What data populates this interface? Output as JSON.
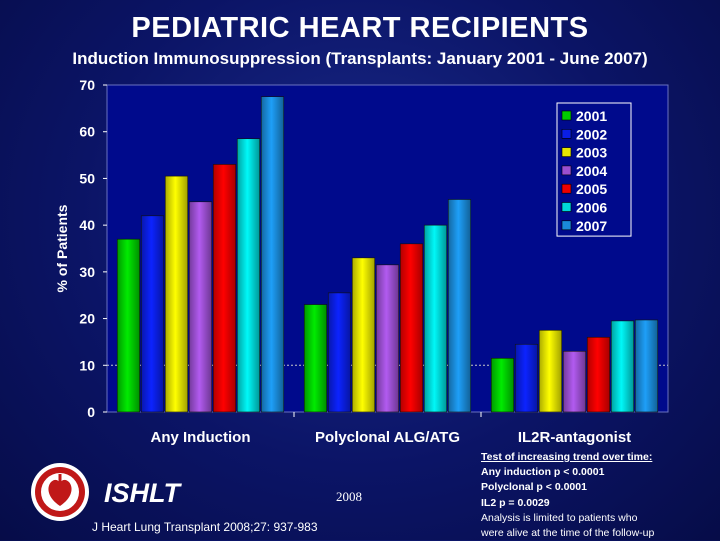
{
  "header": {
    "title": "PEDIATRIC HEART RECIPIENTS",
    "subtitle": "Induction Immunosuppression (Transplants: January 2001 - June 2007)"
  },
  "chart_data": {
    "type": "bar",
    "title": "PEDIATRIC HEART RECIPIENTS",
    "subtitle": "Induction Immunosuppression (Transplants: January 2001 - June 2007)",
    "xlabel": "",
    "ylabel": "% of Patients",
    "ylim": [
      0,
      70
    ],
    "yticks": [
      0,
      10,
      20,
      30,
      40,
      50,
      60,
      70
    ],
    "grid": false,
    "legend_position": "top-right",
    "categories": [
      "Any Induction",
      "Polyclonal ALG/ATG",
      "IL2R-antagonist"
    ],
    "series": [
      {
        "name": "2001",
        "color": "#00cc00",
        "values": [
          37,
          23,
          11.5
        ]
      },
      {
        "name": "2002",
        "color": "#0a1ee6",
        "values": [
          42,
          25.5,
          14.5
        ]
      },
      {
        "name": "2003",
        "color": "#e6e600",
        "values": [
          50.5,
          33,
          17.5
        ]
      },
      {
        "name": "2004",
        "color": "#9b4fd1",
        "values": [
          45,
          31.5,
          13
        ]
      },
      {
        "name": "2005",
        "color": "#ee0000",
        "values": [
          53,
          36,
          16
        ]
      },
      {
        "name": "2006",
        "color": "#00d8d8",
        "values": [
          58.5,
          40,
          19.5
        ]
      },
      {
        "name": "2007",
        "color": "#1a8ad8",
        "values": [
          67.5,
          45.5,
          19.7
        ]
      }
    ]
  },
  "footer": {
    "org": "ISHLT",
    "year": "2008",
    "citation": "J Heart Lung Transplant 2008;27: 937-983",
    "notes": {
      "heading": "Test of increasing trend over time:",
      "lines": [
        "Any induction p < 0.0001",
        "Polyclonal p < 0.0001",
        "IL2 p = 0.0029"
      ],
      "caveat_1": "Analysis is limited to patients who",
      "caveat_2": "were alive at the time of the follow-up"
    }
  },
  "colors": {
    "plot_bg": "#000a8c",
    "text": "#ffffff"
  }
}
